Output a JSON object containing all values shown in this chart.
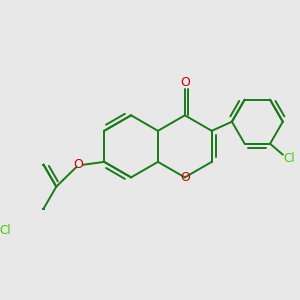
{
  "bg_color": "#e8e8e8",
  "bond_color": "#1a7a1a",
  "o_color": "#cc0000",
  "cl_color": "#44cc00",
  "lw": 1.4,
  "figsize": [
    3.0,
    3.0
  ],
  "dpi": 100,
  "xlim": [
    -3.5,
    3.5
  ],
  "ylim": [
    -3.2,
    3.2
  ]
}
